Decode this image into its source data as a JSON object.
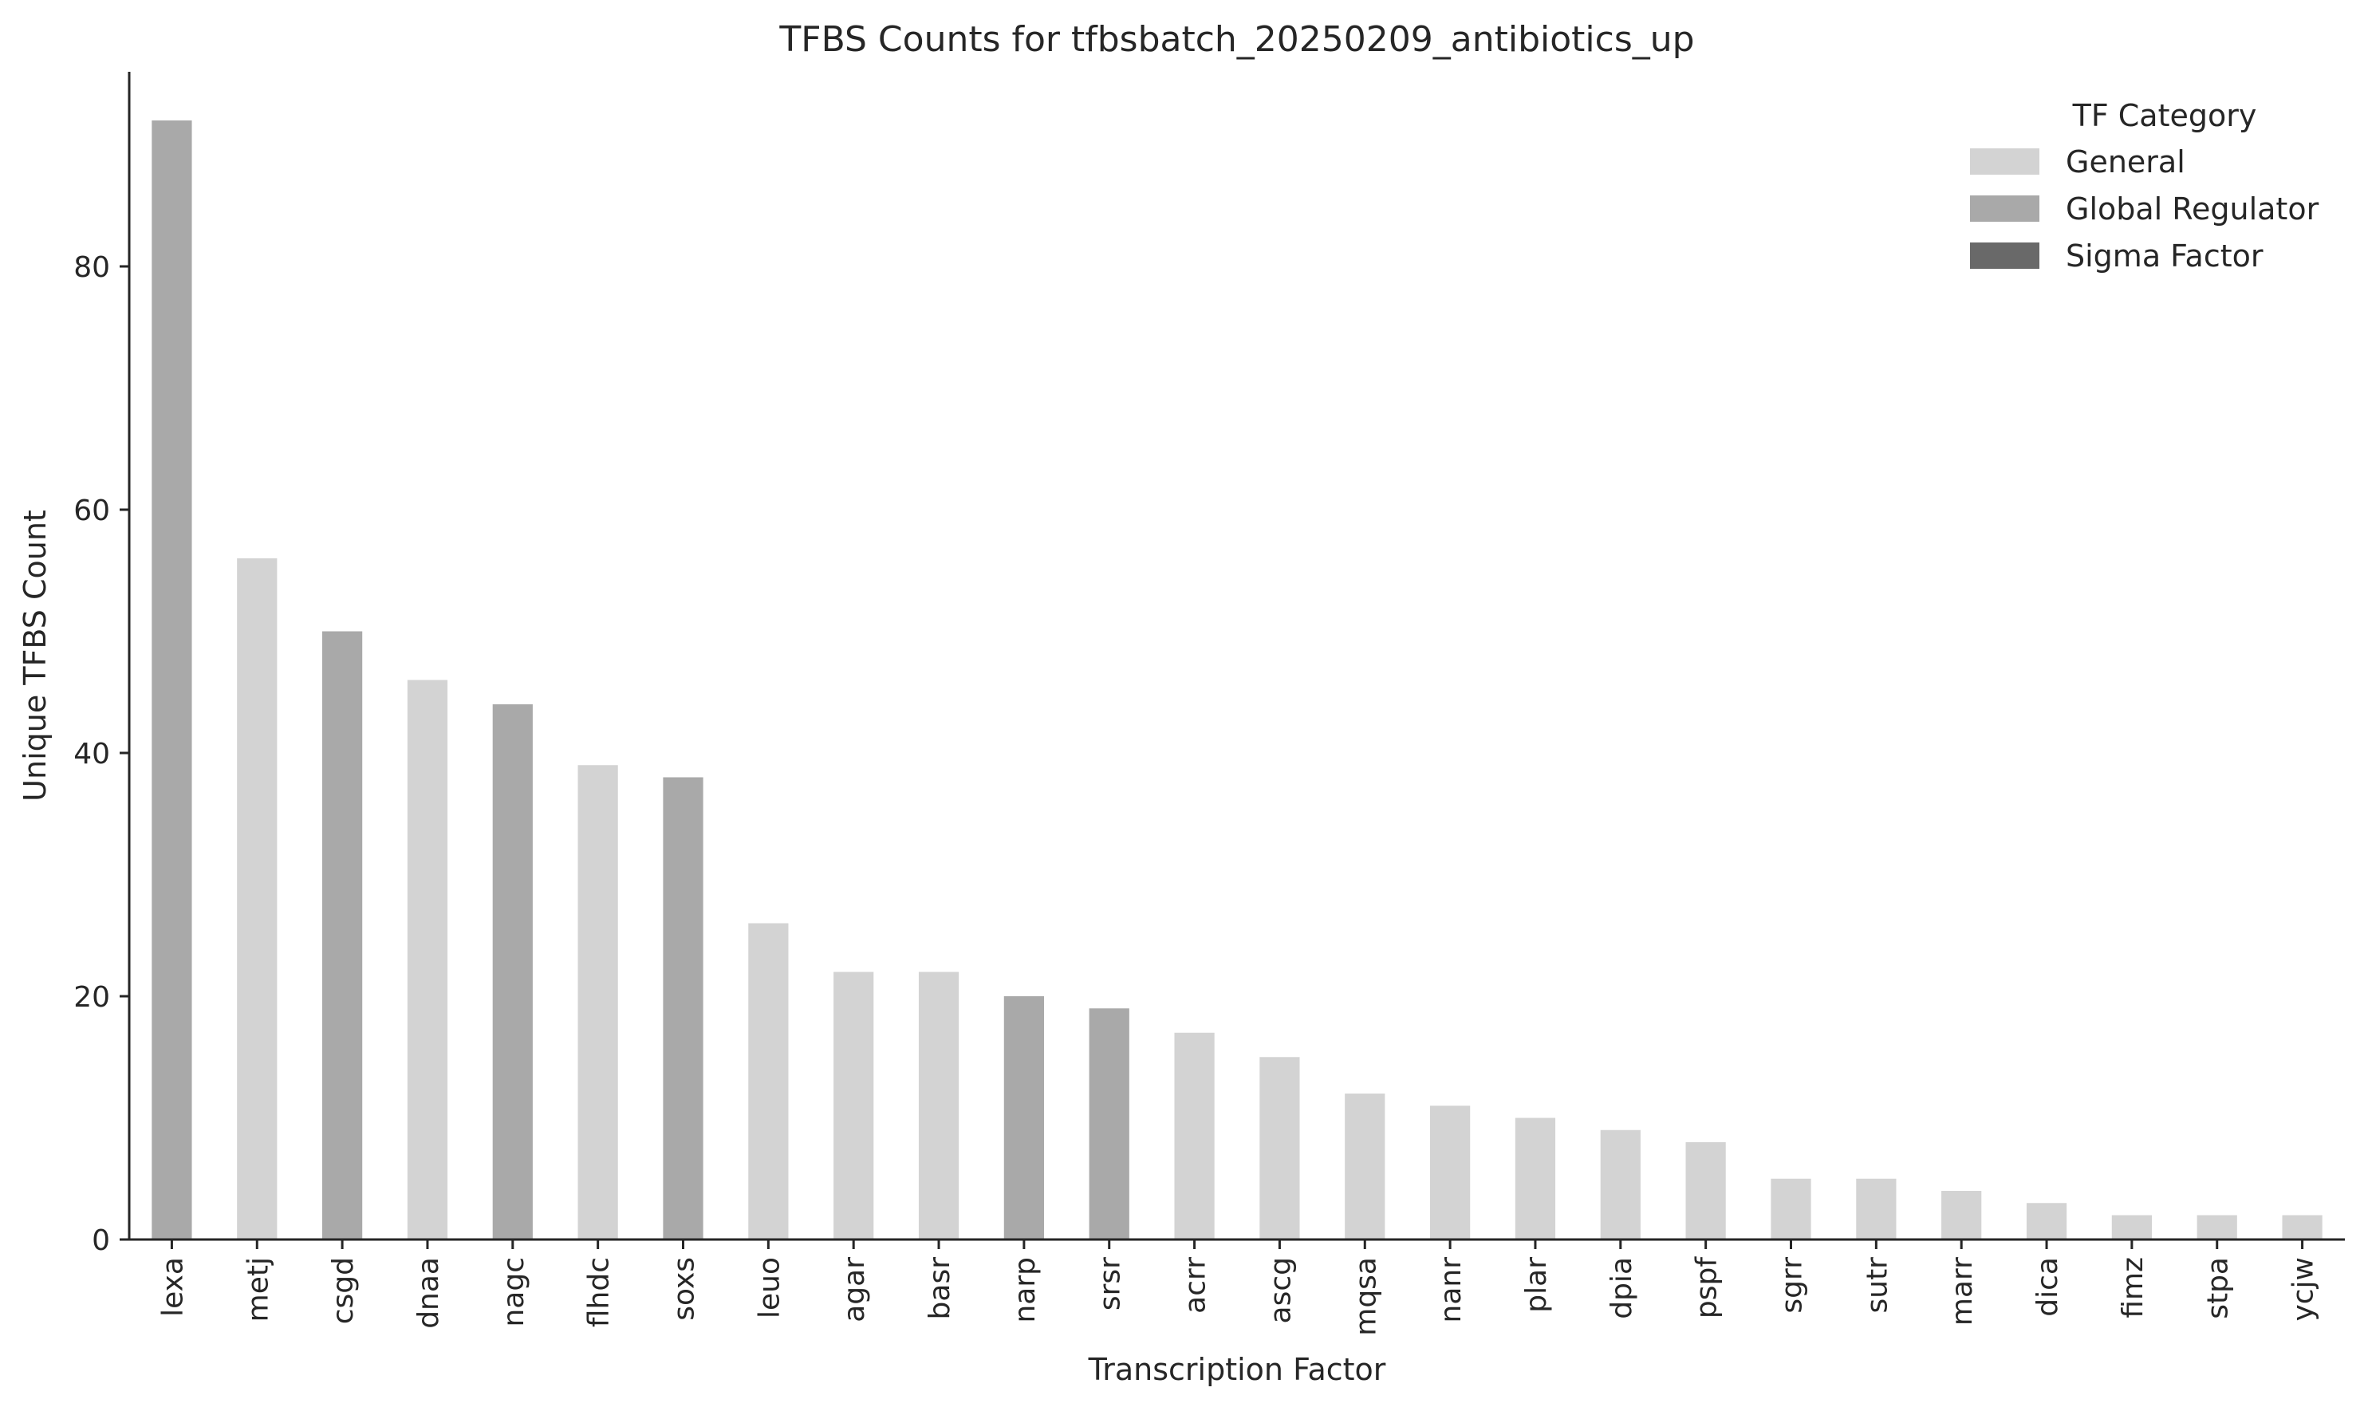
{
  "chart_data": {
    "type": "bar",
    "title": "TFBS Counts for tfbsbatch_20250209_antibiotics_up",
    "xlabel": "Transcription Factor",
    "ylabel": "Unique TFBS Count",
    "ylim": [
      0,
      96
    ],
    "yticks": [
      0,
      20,
      40,
      60,
      80
    ],
    "grid": false,
    "categories": [
      "lexa",
      "metj",
      "csgd",
      "dnaa",
      "nagc",
      "flhdc",
      "soxs",
      "leuo",
      "agar",
      "basr",
      "narp",
      "srsr",
      "acrr",
      "ascg",
      "mqsa",
      "nanr",
      "plar",
      "dpia",
      "pspf",
      "sgrr",
      "sutr",
      "marr",
      "dica",
      "fimz",
      "stpa",
      "ycjw"
    ],
    "values": [
      92,
      56,
      50,
      46,
      44,
      39,
      38,
      26,
      22,
      22,
      20,
      19,
      17,
      15,
      12,
      11,
      10,
      9,
      8,
      5,
      5,
      4,
      3,
      2,
      2,
      2
    ],
    "bar_categories": [
      "Global Regulator",
      "General",
      "Global Regulator",
      "General",
      "Global Regulator",
      "General",
      "Global Regulator",
      "General",
      "General",
      "General",
      "Global Regulator",
      "Global Regulator",
      "General",
      "General",
      "General",
      "General",
      "General",
      "General",
      "General",
      "General",
      "General",
      "General",
      "General",
      "General",
      "General",
      "General"
    ],
    "legend": {
      "title": "TF Category",
      "placement": "top-right",
      "entries": [
        {
          "label": "General",
          "color": "#d3d3d3"
        },
        {
          "label": "Global Regulator",
          "color": "#a9a9a9"
        },
        {
          "label": "Sigma Factor",
          "color": "#696969"
        }
      ]
    }
  }
}
